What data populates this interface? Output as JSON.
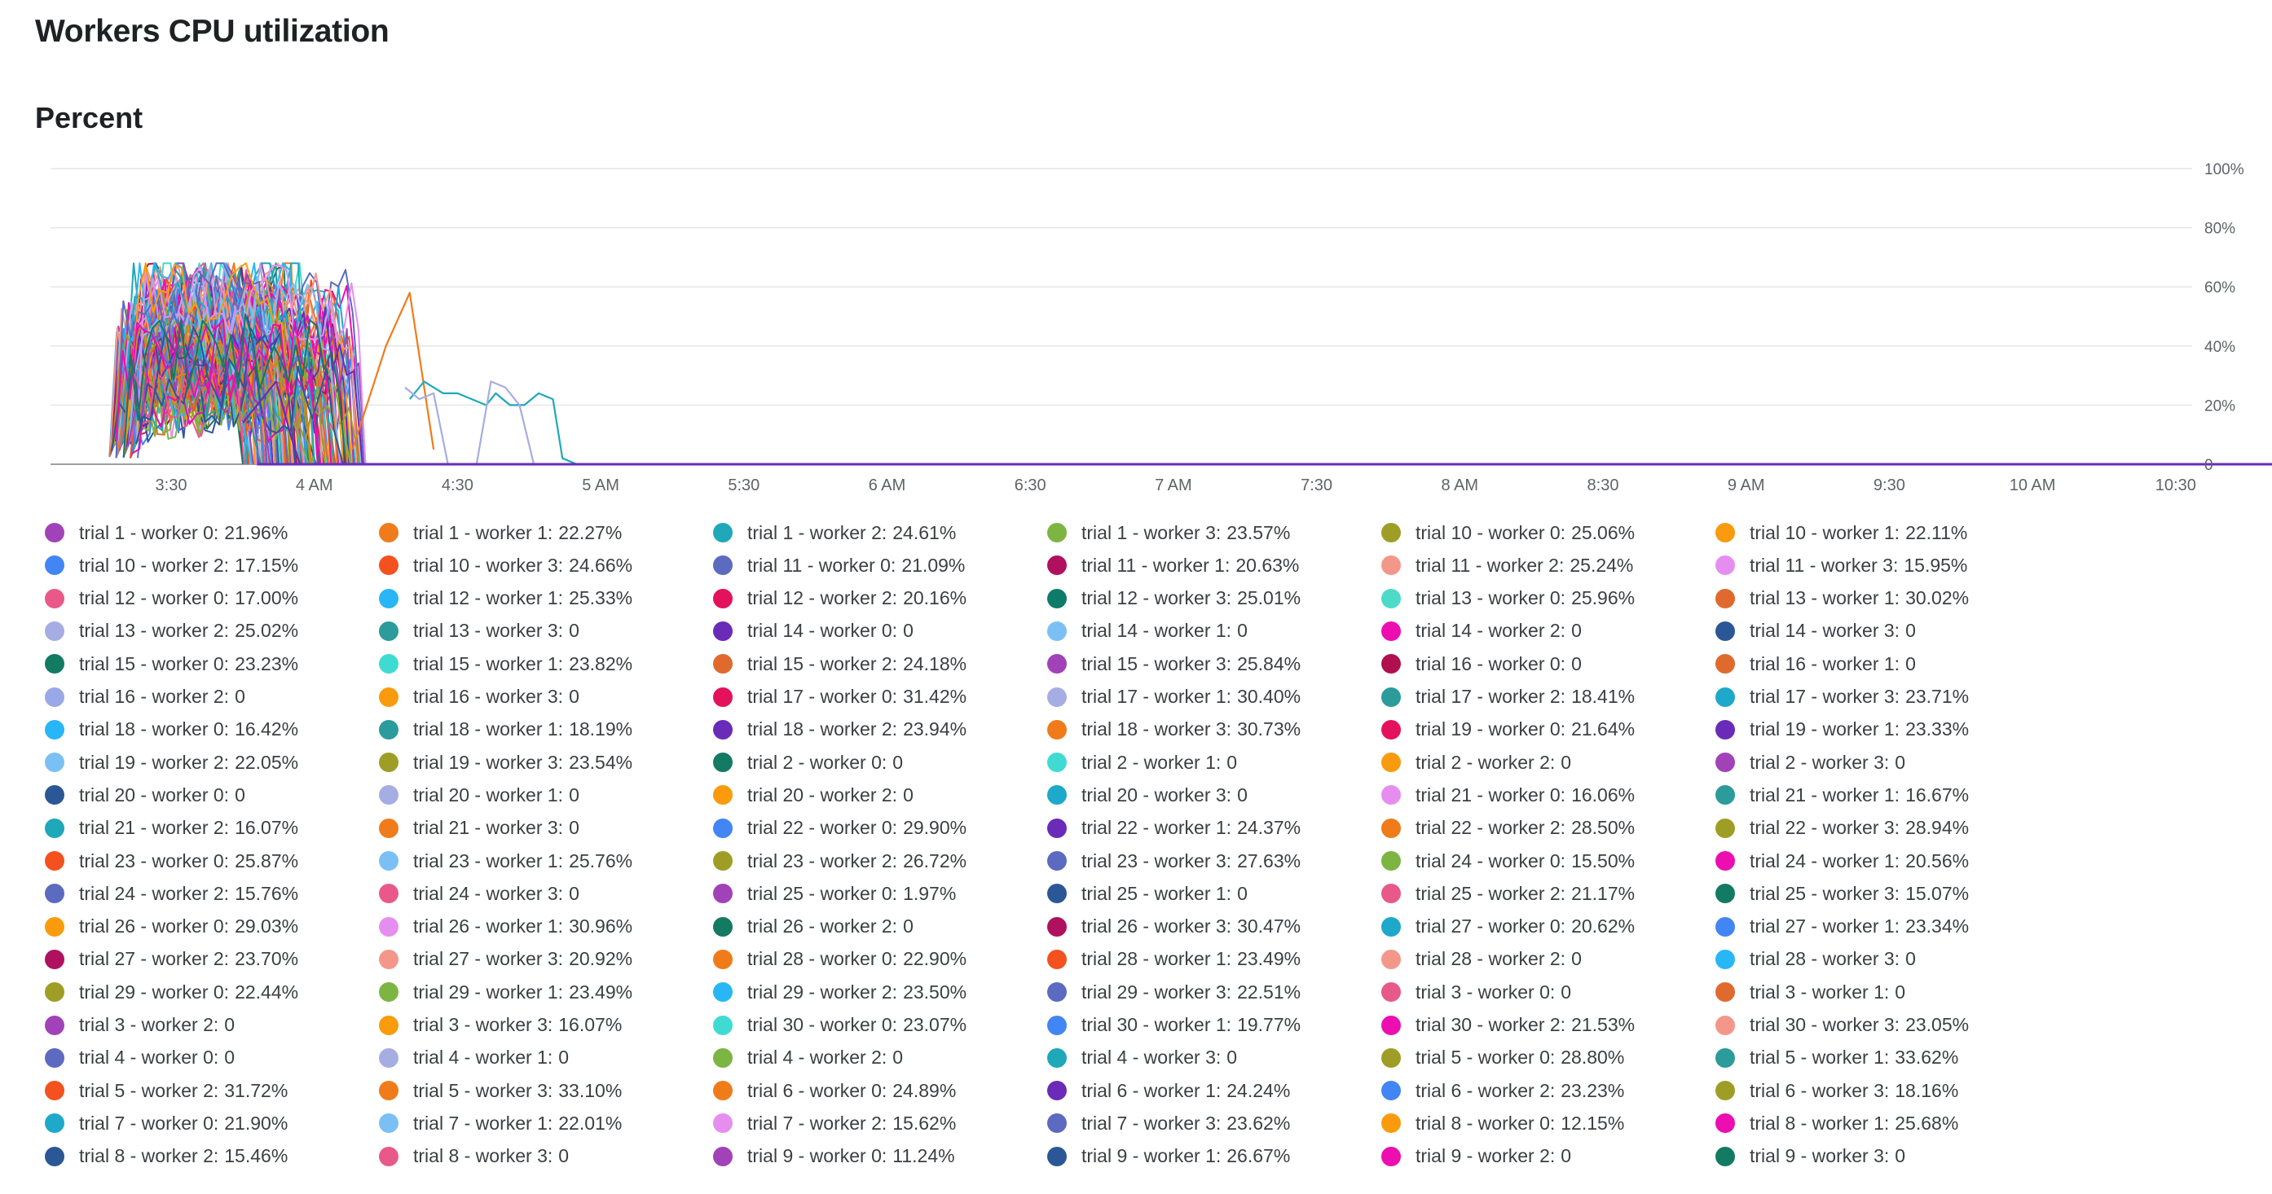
{
  "header": {
    "title": "Workers CPU utilization"
  },
  "chart_data": {
    "type": "line",
    "title": "Percent",
    "xlabel": "",
    "ylabel": "",
    "x_ticks": [
      "3:30",
      "4 AM",
      "4:30",
      "5 AM",
      "5:30",
      "6 AM",
      "6:30",
      "7 AM",
      "7:30",
      "8 AM",
      "8:30",
      "9 AM",
      "9:30",
      "10 AM",
      "10:30"
    ],
    "xlim_minutes_after_3am": [
      19,
      637
    ],
    "y_ticks": [
      "0",
      "20%",
      "40%",
      "60%",
      "80%",
      "100%"
    ],
    "ylim": [
      0,
      100
    ],
    "grid": true,
    "legend_position": "bottom",
    "series": [
      {
        "name": "trial 1 - worker 0",
        "value": "21.96%",
        "color": "#a142b9"
      },
      {
        "name": "trial 1 - worker 1",
        "value": "22.27%",
        "color": "#f07b1a"
      },
      {
        "name": "trial 1 - worker 2",
        "value": "24.61%",
        "color": "#1ea8b9"
      },
      {
        "name": "trial 1 - worker 3",
        "value": "23.57%",
        "color": "#7cb542"
      },
      {
        "name": "trial 10 - worker 0",
        "value": "25.06%",
        "color": "#9e9e26"
      },
      {
        "name": "trial 10 - worker 1",
        "value": "22.11%",
        "color": "#f99b0d"
      },
      {
        "name": "trial 10 - worker 2",
        "value": "17.15%",
        "color": "#4285f4"
      },
      {
        "name": "trial 10 - worker 3",
        "value": "24.66%",
        "color": "#f4511e"
      },
      {
        "name": "trial 11 - worker 0",
        "value": "21.09%",
        "color": "#5c6bc0"
      },
      {
        "name": "trial 11 - worker 1",
        "value": "20.63%",
        "color": "#b0115e"
      },
      {
        "name": "trial 11 - worker 2",
        "value": "25.24%",
        "color": "#f4978b"
      },
      {
        "name": "trial 11 - worker 3",
        "value": "15.95%",
        "color": "#e68ef0"
      },
      {
        "name": "trial 12 - worker 0",
        "value": "17.00%",
        "color": "#e8598a"
      },
      {
        "name": "trial 12 - worker 1",
        "value": "25.33%",
        "color": "#29b6f6"
      },
      {
        "name": "trial 12 - worker 2",
        "value": "20.16%",
        "color": "#e3125b"
      },
      {
        "name": "trial 12 - worker 3",
        "value": "25.01%",
        "color": "#0f7b6a"
      },
      {
        "name": "trial 13 - worker 0",
        "value": "25.96%",
        "color": "#4ddbc8"
      },
      {
        "name": "trial 13 - worker 1",
        "value": "30.02%",
        "color": "#e0692e"
      },
      {
        "name": "trial 13 - worker 2",
        "value": "25.02%",
        "color": "#a6ade3"
      },
      {
        "name": "trial 13 - worker 3",
        "value": "0",
        "color": "#2b9b9b"
      },
      {
        "name": "trial 14 - worker 0",
        "value": "0",
        "color": "#6a2bb8"
      },
      {
        "name": "trial 14 - worker 1",
        "value": "0",
        "color": "#7bc0f5"
      },
      {
        "name": "trial 14 - worker 2",
        "value": "0",
        "color": "#ec0eb0"
      },
      {
        "name": "trial 14 - worker 3",
        "value": "0",
        "color": "#2c5796"
      },
      {
        "name": "trial 15 - worker 0",
        "value": "23.23%",
        "color": "#137a63"
      },
      {
        "name": "trial 15 - worker 1",
        "value": "23.82%",
        "color": "#3fdbd3"
      },
      {
        "name": "trial 15 - worker 2",
        "value": "24.18%",
        "color": "#e0692e"
      },
      {
        "name": "trial 15 - worker 3",
        "value": "25.84%",
        "color": "#a142b9"
      },
      {
        "name": "trial 16 - worker 0",
        "value": "0",
        "color": "#b0114e"
      },
      {
        "name": "trial 16 - worker 1",
        "value": "0",
        "color": "#e0692e"
      },
      {
        "name": "trial 16 - worker 2",
        "value": "0",
        "color": "#9aa8e8"
      },
      {
        "name": "trial 16 - worker 3",
        "value": "0",
        "color": "#f99b0d"
      },
      {
        "name": "trial 17 - worker 0",
        "value": "31.42%",
        "color": "#e3125b"
      },
      {
        "name": "trial 17 - worker 1",
        "value": "30.40%",
        "color": "#a6ade3"
      },
      {
        "name": "trial 17 - worker 2",
        "value": "18.41%",
        "color": "#2b9b9b"
      },
      {
        "name": "trial 17 - worker 3",
        "value": "23.71%",
        "color": "#1ea8c9"
      },
      {
        "name": "trial 18 - worker 0",
        "value": "16.42%",
        "color": "#29b6f6"
      },
      {
        "name": "trial 18 - worker 1",
        "value": "18.19%",
        "color": "#2b9b9b"
      },
      {
        "name": "trial 18 - worker 2",
        "value": "23.94%",
        "color": "#6a2bb8"
      },
      {
        "name": "trial 18 - worker 3",
        "value": "30.73%",
        "color": "#f07b1a"
      },
      {
        "name": "trial 19 - worker 0",
        "value": "21.64%",
        "color": "#e3125b"
      },
      {
        "name": "trial 19 - worker 1",
        "value": "23.33%",
        "color": "#6a2bb8"
      },
      {
        "name": "trial 19 - worker 2",
        "value": "22.05%",
        "color": "#7bc0f5"
      },
      {
        "name": "trial 19 - worker 3",
        "value": "23.54%",
        "color": "#9e9e26"
      },
      {
        "name": "trial 2 - worker 0",
        "value": "0",
        "color": "#137a63"
      },
      {
        "name": "trial 2 - worker 1",
        "value": "0",
        "color": "#3fdbd3"
      },
      {
        "name": "trial 2 - worker 2",
        "value": "0",
        "color": "#f99b0d"
      },
      {
        "name": "trial 2 - worker 3",
        "value": "0",
        "color": "#a142b9"
      },
      {
        "name": "trial 20 - worker 0",
        "value": "0",
        "color": "#2c5796"
      },
      {
        "name": "trial 20 - worker 1",
        "value": "0",
        "color": "#a6ade3"
      },
      {
        "name": "trial 20 - worker 2",
        "value": "0",
        "color": "#f99b0d"
      },
      {
        "name": "trial 20 - worker 3",
        "value": "0",
        "color": "#1ea8c9"
      },
      {
        "name": "trial 21 - worker 0",
        "value": "16.06%",
        "color": "#e68ef0"
      },
      {
        "name": "trial 21 - worker 1",
        "value": "16.67%",
        "color": "#2b9b9b"
      },
      {
        "name": "trial 21 - worker 2",
        "value": "16.07%",
        "color": "#1ea8b9"
      },
      {
        "name": "trial 21 - worker 3",
        "value": "0",
        "color": "#f07b1a"
      },
      {
        "name": "trial 22 - worker 0",
        "value": "29.90%",
        "color": "#4285f4"
      },
      {
        "name": "trial 22 - worker 1",
        "value": "24.37%",
        "color": "#6a2bb8"
      },
      {
        "name": "trial 22 - worker 2",
        "value": "28.50%",
        "color": "#f07b1a"
      },
      {
        "name": "trial 22 - worker 3",
        "value": "28.94%",
        "color": "#9e9e26"
      },
      {
        "name": "trial 23 - worker 0",
        "value": "25.87%",
        "color": "#f4511e"
      },
      {
        "name": "trial 23 - worker 1",
        "value": "25.76%",
        "color": "#7bc0f5"
      },
      {
        "name": "trial 23 - worker 2",
        "value": "26.72%",
        "color": "#9e9e26"
      },
      {
        "name": "trial 23 - worker 3",
        "value": "27.63%",
        "color": "#5c6bc0"
      },
      {
        "name": "trial 24 - worker 0",
        "value": "15.50%",
        "color": "#7cb542"
      },
      {
        "name": "trial 24 - worker 1",
        "value": "20.56%",
        "color": "#ec0eb0"
      },
      {
        "name": "trial 24 - worker 2",
        "value": "15.76%",
        "color": "#5c6bc0"
      },
      {
        "name": "trial 24 - worker 3",
        "value": "0",
        "color": "#e8598a"
      },
      {
        "name": "trial 25 - worker 0",
        "value": "1.97%",
        "color": "#a142b9"
      },
      {
        "name": "trial 25 - worker 1",
        "value": "0",
        "color": "#2c5796"
      },
      {
        "name": "trial 25 - worker 2",
        "value": "21.17%",
        "color": "#e8598a"
      },
      {
        "name": "trial 25 - worker 3",
        "value": "15.07%",
        "color": "#137a63"
      },
      {
        "name": "trial 26 - worker 0",
        "value": "29.03%",
        "color": "#f99b0d"
      },
      {
        "name": "trial 26 - worker 1",
        "value": "30.96%",
        "color": "#e68ef0"
      },
      {
        "name": "trial 26 - worker 2",
        "value": "0",
        "color": "#137a63"
      },
      {
        "name": "trial 26 - worker 3",
        "value": "30.47%",
        "color": "#b0115e"
      },
      {
        "name": "trial 27 - worker 0",
        "value": "20.62%",
        "color": "#1ea8c9"
      },
      {
        "name": "trial 27 - worker 1",
        "value": "23.34%",
        "color": "#4285f4"
      },
      {
        "name": "trial 27 - worker 2",
        "value": "23.70%",
        "color": "#b0115e"
      },
      {
        "name": "trial 27 - worker 3",
        "value": "20.92%",
        "color": "#f4978b"
      },
      {
        "name": "trial 28 - worker 0",
        "value": "22.90%",
        "color": "#f07b1a"
      },
      {
        "name": "trial 28 - worker 1",
        "value": "23.49%",
        "color": "#f4511e"
      },
      {
        "name": "trial 28 - worker 2",
        "value": "0",
        "color": "#f4978b"
      },
      {
        "name": "trial 28 - worker 3",
        "value": "0",
        "color": "#29b6f6"
      },
      {
        "name": "trial 29 - worker 0",
        "value": "22.44%",
        "color": "#9e9e26"
      },
      {
        "name": "trial 29 - worker 1",
        "value": "23.49%",
        "color": "#7cb542"
      },
      {
        "name": "trial 29 - worker 2",
        "value": "23.50%",
        "color": "#29b6f6"
      },
      {
        "name": "trial 29 - worker 3",
        "value": "22.51%",
        "color": "#5c6bc0"
      },
      {
        "name": "trial 3 - worker 0",
        "value": "0",
        "color": "#e8598a"
      },
      {
        "name": "trial 3 - worker 1",
        "value": "0",
        "color": "#e0692e"
      },
      {
        "name": "trial 3 - worker 2",
        "value": "0",
        "color": "#a142b9"
      },
      {
        "name": "trial 3 - worker 3",
        "value": "16.07%",
        "color": "#f99b0d"
      },
      {
        "name": "trial 30 - worker 0",
        "value": "23.07%",
        "color": "#3fdbd3"
      },
      {
        "name": "trial 30 - worker 1",
        "value": "19.77%",
        "color": "#4285f4"
      },
      {
        "name": "trial 30 - worker 2",
        "value": "21.53%",
        "color": "#ec0eb0"
      },
      {
        "name": "trial 30 - worker 3",
        "value": "23.05%",
        "color": "#f4978b"
      },
      {
        "name": "trial 4 - worker 0",
        "value": "0",
        "color": "#5c6bc0"
      },
      {
        "name": "trial 4 - worker 1",
        "value": "0",
        "color": "#a6ade3"
      },
      {
        "name": "trial 4 - worker 2",
        "value": "0",
        "color": "#7cb542"
      },
      {
        "name": "trial 4 - worker 3",
        "value": "0",
        "color": "#1ea8b9"
      },
      {
        "name": "trial 5 - worker 0",
        "value": "28.80%",
        "color": "#9e9e26"
      },
      {
        "name": "trial 5 - worker 1",
        "value": "33.62%",
        "color": "#2b9b9b"
      },
      {
        "name": "trial 5 - worker 2",
        "value": "31.72%",
        "color": "#f4511e"
      },
      {
        "name": "trial 5 - worker 3",
        "value": "33.10%",
        "color": "#f07b1a"
      },
      {
        "name": "trial 6 - worker 0",
        "value": "24.89%",
        "color": "#f07b1a"
      },
      {
        "name": "trial 6 - worker 1",
        "value": "24.24%",
        "color": "#6a2bb8"
      },
      {
        "name": "trial 6 - worker 2",
        "value": "23.23%",
        "color": "#4285f4"
      },
      {
        "name": "trial 6 - worker 3",
        "value": "18.16%",
        "color": "#9e9e26"
      },
      {
        "name": "trial 7 - worker 0",
        "value": "21.90%",
        "color": "#1ea8c9"
      },
      {
        "name": "trial 7 - worker 1",
        "value": "22.01%",
        "color": "#7bc0f5"
      },
      {
        "name": "trial 7 - worker 2",
        "value": "15.62%",
        "color": "#e68ef0"
      },
      {
        "name": "trial 7 - worker 3",
        "value": "23.62%",
        "color": "#5c6bc0"
      },
      {
        "name": "trial 8 - worker 0",
        "value": "12.15%",
        "color": "#f99b0d"
      },
      {
        "name": "trial 8 - worker 1",
        "value": "25.68%",
        "color": "#ec0eb0"
      },
      {
        "name": "trial 8 - worker 2",
        "value": "15.46%",
        "color": "#2c5796"
      },
      {
        "name": "trial 8 - worker 3",
        "value": "0",
        "color": "#e8598a"
      },
      {
        "name": "trial 9 - worker 0",
        "value": "11.24%",
        "color": "#a142b9"
      },
      {
        "name": "trial 9 - worker 1",
        "value": "26.67%",
        "color": "#2c5796"
      },
      {
        "name": "trial 9 - worker 2",
        "value": "0",
        "color": "#ec0eb0"
      },
      {
        "name": "trial 9 - worker 3",
        "value": "0",
        "color": "#137a63"
      }
    ],
    "highlighted_lines": [
      {
        "color": "#f07b1a",
        "points": [
          [
            68,
            5
          ],
          [
            75,
            40
          ],
          [
            80,
            58
          ],
          [
            85,
            5
          ]
        ]
      },
      {
        "color": "#1ea8b9",
        "points": [
          [
            80,
            22
          ],
          [
            83,
            28
          ],
          [
            87,
            24
          ],
          [
            90,
            24
          ],
          [
            93,
            22
          ],
          [
            96,
            20
          ],
          [
            98,
            24
          ],
          [
            101,
            20
          ],
          [
            104,
            20
          ],
          [
            107,
            24
          ],
          [
            110,
            22
          ],
          [
            112,
            2
          ],
          [
            115,
            0
          ]
        ]
      },
      {
        "color": "#a6ade3",
        "points": [
          [
            79,
            26
          ],
          [
            82,
            22
          ],
          [
            85,
            24
          ],
          [
            88,
            0
          ]
        ]
      },
      {
        "color": "#a6ade3",
        "points": [
          [
            94,
            0
          ],
          [
            97,
            28
          ],
          [
            100,
            26
          ],
          [
            103,
            20
          ],
          [
            106,
            0
          ]
        ]
      },
      {
        "color": "#6a2bb8",
        "points": [
          [
            45,
            14
          ],
          [
            48,
            20
          ],
          [
            52,
            28
          ],
          [
            55,
            10
          ],
          [
            57,
            0
          ]
        ]
      }
    ]
  }
}
